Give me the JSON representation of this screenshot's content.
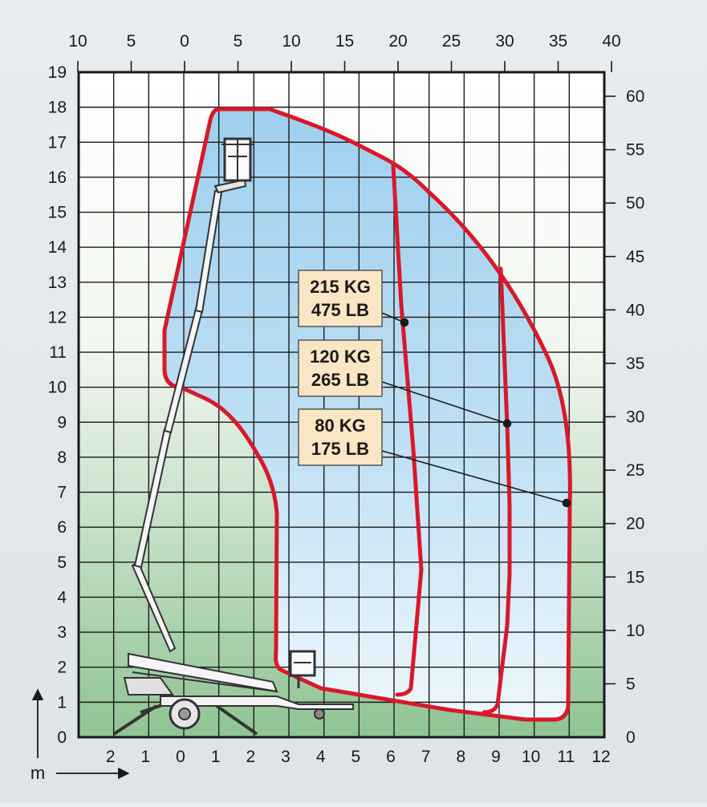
{
  "chart_data": {
    "type": "diagram",
    "axes": {
      "left_ticks": [
        "0",
        "1",
        "2",
        "3",
        "4",
        "5",
        "6",
        "7",
        "8",
        "9",
        "10",
        "11",
        "12",
        "13",
        "14",
        "15",
        "16",
        "17",
        "18",
        "19"
      ],
      "right_ticks": [
        "0",
        "5",
        "10",
        "15",
        "20",
        "25",
        "30",
        "35",
        "40",
        "45",
        "50",
        "55",
        "60"
      ],
      "top_ticks": [
        "10",
        "5",
        "0",
        "5",
        "10",
        "15",
        "20",
        "25",
        "30",
        "35",
        "40"
      ],
      "bottom_ticks": [
        "2",
        "1",
        "0",
        "1",
        "2",
        "3",
        "4",
        "5",
        "6",
        "7",
        "8",
        "9",
        "10",
        "11",
        "12"
      ],
      "unit_label": "m",
      "grid": true
    },
    "capacities": [
      {
        "kg": "215 KG",
        "lb": "475 LB"
      },
      {
        "kg": "120 KG",
        "lb": "265 LB"
      },
      {
        "kg": "80 KG",
        "lb": "175 LB"
      }
    ],
    "colors": {
      "envelope": "#d9182a",
      "fill_top": "#9fd0ef",
      "fill_bottom": "#eaf5fb",
      "bg_top": "#ffffff",
      "bg_bottom": "#8fc494",
      "label_bg": "#f8e6c4",
      "grid": "#1a1a1a"
    }
  }
}
